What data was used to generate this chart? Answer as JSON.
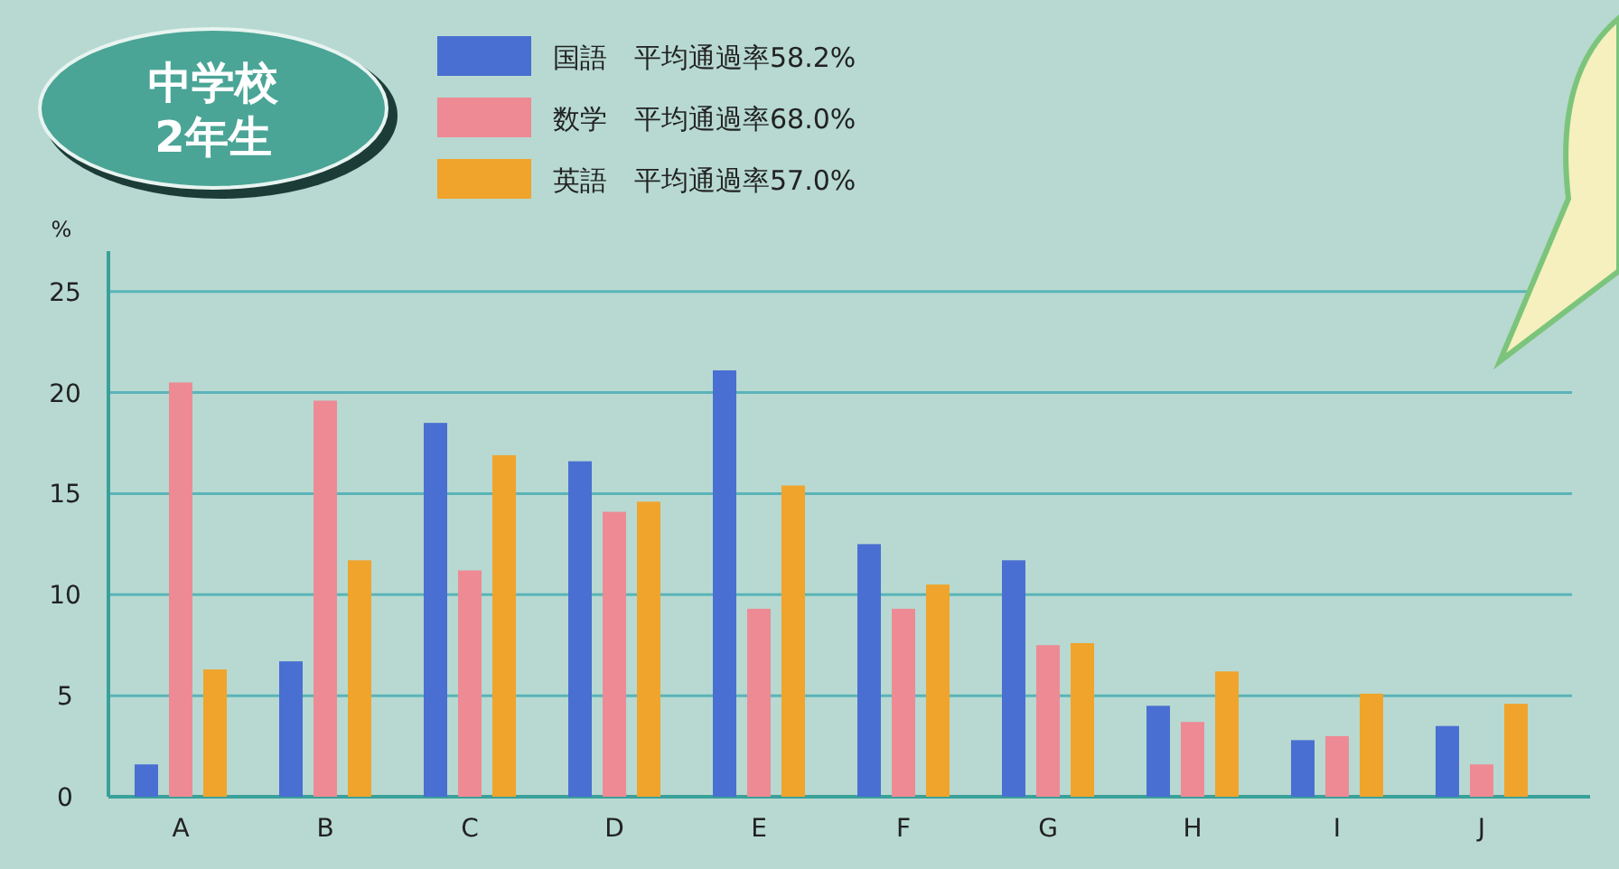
{
  "chart_data": {
    "type": "bar",
    "title": "中学校\n2年生",
    "ylabel": "%",
    "categories": [
      "A",
      "B",
      "C",
      "D",
      "E",
      "F",
      "G",
      "H",
      "I",
      "J"
    ],
    "series": [
      {
        "name": "国語　平均通過率58.2%",
        "color": "#4a6fd2",
        "values": [
          1.6,
          6.7,
          18.5,
          16.6,
          21.1,
          12.5,
          11.7,
          4.5,
          2.8,
          3.5
        ]
      },
      {
        "name": "数学　平均通過率68.0%",
        "color": "#ee8a94",
        "values": [
          20.5,
          19.6,
          11.2,
          14.1,
          9.3,
          9.3,
          7.5,
          3.7,
          3.0,
          1.6
        ]
      },
      {
        "name": "英語　平均通過率57.0%",
        "color": "#f0a42c",
        "values": [
          6.3,
          11.7,
          16.9,
          14.6,
          15.4,
          10.5,
          7.6,
          6.2,
          5.1,
          4.6
        ]
      }
    ],
    "ylim": [
      0,
      27
    ],
    "yticks": [
      0,
      5,
      10,
      15,
      20,
      25
    ],
    "grid": "y",
    "legend": "top"
  }
}
